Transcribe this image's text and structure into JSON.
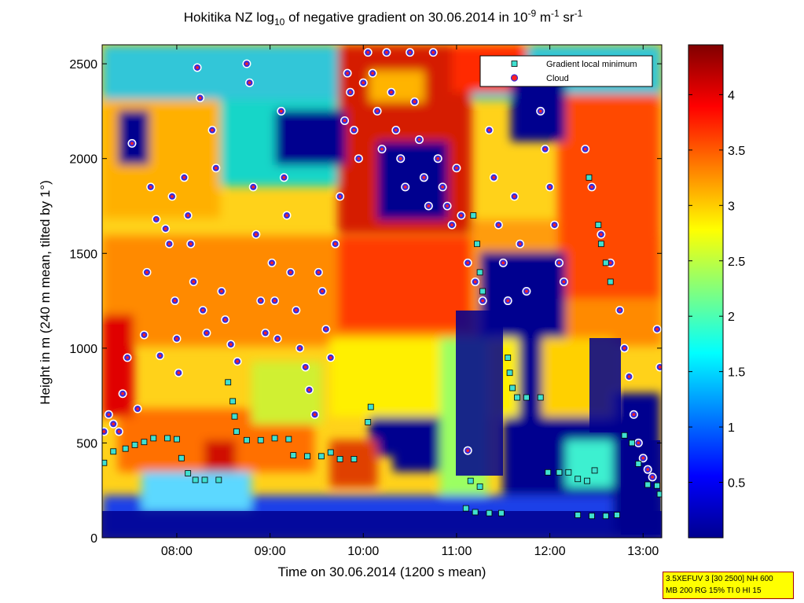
{
  "chart_data": {
    "type": "heatmap",
    "title": {
      "part1": "Hokitika NZ log",
      "sub": "10",
      "part2": " of negative gradient on 30.06.2014 in 10",
      "sup1": "-9",
      "part3": " m",
      "sup2": "-1",
      "part4": " sr",
      "sup3": "-1"
    },
    "xlabel": "Time on 30.06.2014 (1200 s mean)",
    "ylabel": "Height in m (240 m mean, tilted by 1°)",
    "xlim_hours": [
      7.2,
      13.2
    ],
    "ylim": [
      0,
      2600
    ],
    "x_ticks": [
      "08:00",
      "09:00",
      "10:00",
      "11:00",
      "12:00",
      "13:00"
    ],
    "x_tick_hours": [
      8,
      9,
      10,
      11,
      12,
      13
    ],
    "y_ticks": [
      0,
      500,
      1000,
      1500,
      2000,
      2500
    ],
    "colorbar": {
      "range": [
        0,
        4.45
      ],
      "ticks": [
        0.5,
        1,
        1.5,
        2,
        2.5,
        3,
        3.5,
        4
      ],
      "colormap": "jet"
    },
    "legend": {
      "position": "top-right",
      "entries": [
        {
          "label": "Gradient local minimum",
          "marker": "square",
          "color": "#40e0d0"
        },
        {
          "label": "Cloud",
          "marker": "circle",
          "color": "#ff2020"
        }
      ]
    },
    "series": [
      {
        "name": "Gradient local minimum",
        "points": [
          {
            "time": 7.22,
            "height": 395
          },
          {
            "time": 7.32,
            "height": 455
          },
          {
            "time": 7.45,
            "height": 470
          },
          {
            "time": 7.55,
            "height": 490
          },
          {
            "time": 7.65,
            "height": 505
          },
          {
            "time": 7.75,
            "height": 525
          },
          {
            "time": 7.9,
            "height": 525
          },
          {
            "time": 8.0,
            "height": 520
          },
          {
            "time": 8.05,
            "height": 420
          },
          {
            "time": 8.12,
            "height": 340
          },
          {
            "time": 8.2,
            "height": 305
          },
          {
            "time": 8.3,
            "height": 305
          },
          {
            "time": 8.45,
            "height": 305
          },
          {
            "time": 8.55,
            "height": 820
          },
          {
            "time": 8.6,
            "height": 720
          },
          {
            "time": 8.62,
            "height": 640
          },
          {
            "time": 8.64,
            "height": 560
          },
          {
            "time": 8.75,
            "height": 515
          },
          {
            "time": 8.9,
            "height": 515
          },
          {
            "time": 9.05,
            "height": 525
          },
          {
            "time": 9.2,
            "height": 520
          },
          {
            "time": 9.25,
            "height": 435
          },
          {
            "time": 9.4,
            "height": 430
          },
          {
            "time": 9.55,
            "height": 430
          },
          {
            "time": 9.65,
            "height": 450
          },
          {
            "time": 9.75,
            "height": 415
          },
          {
            "time": 9.9,
            "height": 415
          },
          {
            "time": 10.05,
            "height": 610
          },
          {
            "time": 10.08,
            "height": 690
          },
          {
            "time": 11.15,
            "height": 300
          },
          {
            "time": 11.25,
            "height": 270
          },
          {
            "time": 11.1,
            "height": 155
          },
          {
            "time": 11.2,
            "height": 135
          },
          {
            "time": 11.35,
            "height": 130
          },
          {
            "time": 11.48,
            "height": 130
          },
          {
            "time": 11.55,
            "height": 950
          },
          {
            "time": 11.57,
            "height": 870
          },
          {
            "time": 11.6,
            "height": 790
          },
          {
            "time": 11.65,
            "height": 740
          },
          {
            "time": 11.75,
            "height": 740
          },
          {
            "time": 11.9,
            "height": 740
          },
          {
            "time": 11.98,
            "height": 345
          },
          {
            "time": 12.1,
            "height": 345
          },
          {
            "time": 12.2,
            "height": 345
          },
          {
            "time": 12.3,
            "height": 310
          },
          {
            "time": 12.4,
            "height": 300
          },
          {
            "time": 12.48,
            "height": 355
          },
          {
            "time": 12.3,
            "height": 120
          },
          {
            "time": 12.45,
            "height": 115
          },
          {
            "time": 12.6,
            "height": 115
          },
          {
            "time": 12.72,
            "height": 120
          },
          {
            "time": 12.8,
            "height": 540
          },
          {
            "time": 12.88,
            "height": 500
          },
          {
            "time": 12.95,
            "height": 390
          },
          {
            "time": 13.05,
            "height": 280
          },
          {
            "time": 13.15,
            "height": 275
          },
          {
            "time": 13.18,
            "height": 230
          },
          {
            "time": 11.18,
            "height": 1700
          },
          {
            "time": 11.22,
            "height": 1550
          },
          {
            "time": 11.25,
            "height": 1400
          },
          {
            "time": 11.28,
            "height": 1300
          },
          {
            "time": 12.52,
            "height": 1650
          },
          {
            "time": 12.55,
            "height": 1550
          },
          {
            "time": 12.6,
            "height": 1450
          },
          {
            "time": 12.65,
            "height": 1350
          },
          {
            "time": 12.42,
            "height": 1900
          }
        ]
      },
      {
        "name": "Cloud",
        "points": [
          {
            "time": 7.22,
            "height": 560
          },
          {
            "time": 7.27,
            "height": 650
          },
          {
            "time": 7.32,
            "height": 600
          },
          {
            "time": 7.38,
            "height": 560
          },
          {
            "time": 7.42,
            "height": 760
          },
          {
            "time": 7.47,
            "height": 950
          },
          {
            "time": 7.52,
            "height": 2080
          },
          {
            "time": 7.58,
            "height": 680
          },
          {
            "time": 7.65,
            "height": 1070
          },
          {
            "time": 7.68,
            "height": 1400
          },
          {
            "time": 7.72,
            "height": 1850
          },
          {
            "time": 7.78,
            "height": 1680
          },
          {
            "time": 7.82,
            "height": 960
          },
          {
            "time": 7.88,
            "height": 1630
          },
          {
            "time": 7.92,
            "height": 1550
          },
          {
            "time": 7.95,
            "height": 1800
          },
          {
            "time": 7.98,
            "height": 1250
          },
          {
            "time": 8.0,
            "height": 1050
          },
          {
            "time": 8.02,
            "height": 870
          },
          {
            "time": 8.08,
            "height": 1900
          },
          {
            "time": 8.12,
            "height": 1700
          },
          {
            "time": 8.15,
            "height": 1550
          },
          {
            "time": 8.18,
            "height": 1350
          },
          {
            "time": 8.22,
            "height": 2480
          },
          {
            "time": 8.25,
            "height": 2320
          },
          {
            "time": 8.28,
            "height": 1200
          },
          {
            "time": 8.32,
            "height": 1080
          },
          {
            "time": 8.38,
            "height": 2150
          },
          {
            "time": 8.42,
            "height": 1950
          },
          {
            "time": 8.48,
            "height": 1300
          },
          {
            "time": 8.52,
            "height": 1150
          },
          {
            "time": 8.58,
            "height": 1020
          },
          {
            "time": 8.65,
            "height": 930
          },
          {
            "time": 8.75,
            "height": 2500
          },
          {
            "time": 8.78,
            "height": 2400
          },
          {
            "time": 8.82,
            "height": 1850
          },
          {
            "time": 8.85,
            "height": 1600
          },
          {
            "time": 8.9,
            "height": 1250
          },
          {
            "time": 8.95,
            "height": 1080
          },
          {
            "time": 9.02,
            "height": 1450
          },
          {
            "time": 9.05,
            "height": 1250
          },
          {
            "time": 9.08,
            "height": 1050
          },
          {
            "time": 9.12,
            "height": 2250
          },
          {
            "time": 9.15,
            "height": 1900
          },
          {
            "time": 9.18,
            "height": 1700
          },
          {
            "time": 9.22,
            "height": 1400
          },
          {
            "time": 9.28,
            "height": 1200
          },
          {
            "time": 9.32,
            "height": 1000
          },
          {
            "time": 9.38,
            "height": 900
          },
          {
            "time": 9.42,
            "height": 780
          },
          {
            "time": 9.48,
            "height": 650
          },
          {
            "time": 9.52,
            "height": 1400
          },
          {
            "time": 9.56,
            "height": 1300
          },
          {
            "time": 9.6,
            "height": 1100
          },
          {
            "time": 9.65,
            "height": 950
          },
          {
            "time": 9.7,
            "height": 1550
          },
          {
            "time": 9.75,
            "height": 1800
          },
          {
            "time": 9.8,
            "height": 2200
          },
          {
            "time": 9.83,
            "height": 2450
          },
          {
            "time": 9.86,
            "height": 2350
          },
          {
            "time": 9.9,
            "height": 2150
          },
          {
            "time": 9.95,
            "height": 2000
          },
          {
            "time": 10.0,
            "height": 2400
          },
          {
            "time": 10.05,
            "height": 2560
          },
          {
            "time": 10.1,
            "height": 2450
          },
          {
            "time": 10.15,
            "height": 2250
          },
          {
            "time": 10.2,
            "height": 2050
          },
          {
            "time": 10.25,
            "height": 2560
          },
          {
            "time": 10.3,
            "height": 2350
          },
          {
            "time": 10.35,
            "height": 2150
          },
          {
            "time": 10.4,
            "height": 2000
          },
          {
            "time": 10.45,
            "height": 1850
          },
          {
            "time": 10.5,
            "height": 2560
          },
          {
            "time": 10.55,
            "height": 2300
          },
          {
            "time": 10.6,
            "height": 2100
          },
          {
            "time": 10.65,
            "height": 1900
          },
          {
            "time": 10.7,
            "height": 1750
          },
          {
            "time": 10.75,
            "height": 2560
          },
          {
            "time": 10.8,
            "height": 2000
          },
          {
            "time": 10.85,
            "height": 1850
          },
          {
            "time": 10.9,
            "height": 1750
          },
          {
            "time": 10.95,
            "height": 1650
          },
          {
            "time": 11.0,
            "height": 1950
          },
          {
            "time": 11.05,
            "height": 1700
          },
          {
            "time": 11.12,
            "height": 1450
          },
          {
            "time": 11.2,
            "height": 1350
          },
          {
            "time": 11.28,
            "height": 1250
          },
          {
            "time": 11.35,
            "height": 2150
          },
          {
            "time": 11.4,
            "height": 1900
          },
          {
            "time": 11.45,
            "height": 1650
          },
          {
            "time": 11.5,
            "height": 1450
          },
          {
            "time": 11.55,
            "height": 1250
          },
          {
            "time": 11.62,
            "height": 1800
          },
          {
            "time": 11.68,
            "height": 1550
          },
          {
            "time": 11.75,
            "height": 1300
          },
          {
            "time": 11.85,
            "height": 2450
          },
          {
            "time": 11.9,
            "height": 2250
          },
          {
            "time": 11.95,
            "height": 2050
          },
          {
            "time": 12.0,
            "height": 1850
          },
          {
            "time": 12.05,
            "height": 1650
          },
          {
            "time": 12.1,
            "height": 1450
          },
          {
            "time": 12.15,
            "height": 1350
          },
          {
            "time": 12.38,
            "height": 2050
          },
          {
            "time": 12.45,
            "height": 1850
          },
          {
            "time": 12.55,
            "height": 1600
          },
          {
            "time": 12.65,
            "height": 1450
          },
          {
            "time": 12.75,
            "height": 1200
          },
          {
            "time": 12.8,
            "height": 1000
          },
          {
            "time": 12.85,
            "height": 850
          },
          {
            "time": 12.9,
            "height": 650
          },
          {
            "time": 12.95,
            "height": 500
          },
          {
            "time": 13.0,
            "height": 420
          },
          {
            "time": 13.05,
            "height": 360
          },
          {
            "time": 13.1,
            "height": 320
          },
          {
            "time": 13.15,
            "height": 1100
          },
          {
            "time": 13.18,
            "height": 900
          },
          {
            "time": 11.12,
            "height": 460
          }
        ]
      }
    ]
  },
  "info_box": {
    "line1": "3.5XEFUV 3 [30 2500] NH 600",
    "line2": "MB 200 RG 15% TI 0 HI 15"
  }
}
